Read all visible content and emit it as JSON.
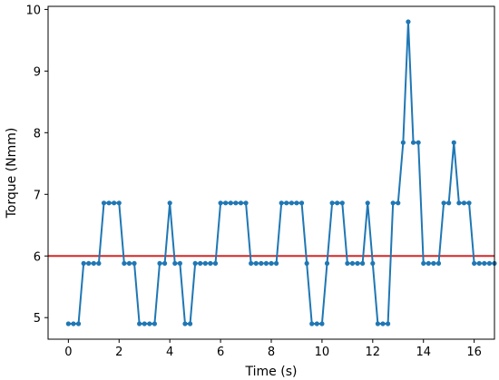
{
  "chart_data": {
    "type": "line",
    "xlabel": "Time (s)",
    "ylabel": "Torque (Nmm)",
    "xlim": [
      -0.8,
      16.8
    ],
    "ylim": [
      4.65,
      10.05
    ],
    "xticks": [
      "0",
      "2",
      "4",
      "6",
      "8",
      "10",
      "12",
      "14",
      "16"
    ],
    "yticks": [
      "5",
      "6",
      "7",
      "8",
      "9",
      "10"
    ],
    "grid": false,
    "series": [
      {
        "color": "#1f77b4",
        "marker": "circle",
        "points": [
          [
            0.0,
            4.9
          ],
          [
            0.2,
            4.9
          ],
          [
            0.4,
            4.9
          ],
          [
            0.6,
            5.88
          ],
          [
            0.8,
            5.88
          ],
          [
            1.0,
            5.88
          ],
          [
            1.2,
            5.88
          ],
          [
            1.4,
            6.86
          ],
          [
            1.6,
            6.86
          ],
          [
            1.8,
            6.86
          ],
          [
            2.0,
            6.86
          ],
          [
            2.2,
            5.88
          ],
          [
            2.4,
            5.88
          ],
          [
            2.6,
            5.88
          ],
          [
            2.8,
            4.9
          ],
          [
            3.0,
            4.9
          ],
          [
            3.2,
            4.9
          ],
          [
            3.4,
            4.9
          ],
          [
            3.6,
            5.88
          ],
          [
            3.8,
            5.88
          ],
          [
            4.0,
            6.86
          ],
          [
            4.2,
            5.88
          ],
          [
            4.4,
            5.88
          ],
          [
            4.6,
            4.9
          ],
          [
            4.8,
            4.9
          ],
          [
            5.0,
            5.88
          ],
          [
            5.2,
            5.88
          ],
          [
            5.4,
            5.88
          ],
          [
            5.6,
            5.88
          ],
          [
            5.8,
            5.88
          ],
          [
            6.0,
            6.86
          ],
          [
            6.2,
            6.86
          ],
          [
            6.4,
            6.86
          ],
          [
            6.6,
            6.86
          ],
          [
            6.8,
            6.86
          ],
          [
            7.0,
            6.86
          ],
          [
            7.2,
            5.88
          ],
          [
            7.4,
            5.88
          ],
          [
            7.6,
            5.88
          ],
          [
            7.8,
            5.88
          ],
          [
            8.0,
            5.88
          ],
          [
            8.2,
            5.88
          ],
          [
            8.4,
            6.86
          ],
          [
            8.6,
            6.86
          ],
          [
            8.8,
            6.86
          ],
          [
            9.0,
            6.86
          ],
          [
            9.2,
            6.86
          ],
          [
            9.4,
            5.88
          ],
          [
            9.6,
            4.9
          ],
          [
            9.8,
            4.9
          ],
          [
            10.0,
            4.9
          ],
          [
            10.2,
            5.88
          ],
          [
            10.4,
            6.86
          ],
          [
            10.6,
            6.86
          ],
          [
            10.8,
            6.86
          ],
          [
            11.0,
            5.88
          ],
          [
            11.2,
            5.88
          ],
          [
            11.4,
            5.88
          ],
          [
            11.6,
            5.88
          ],
          [
            11.8,
            6.86
          ],
          [
            12.0,
            5.88
          ],
          [
            12.2,
            4.9
          ],
          [
            12.4,
            4.9
          ],
          [
            12.6,
            4.9
          ],
          [
            12.8,
            6.86
          ],
          [
            13.0,
            6.86
          ],
          [
            13.2,
            7.84
          ],
          [
            13.4,
            9.8
          ],
          [
            13.6,
            7.84
          ],
          [
            13.8,
            7.84
          ],
          [
            14.0,
            5.88
          ],
          [
            14.2,
            5.88
          ],
          [
            14.4,
            5.88
          ],
          [
            14.6,
            5.88
          ],
          [
            14.8,
            6.86
          ],
          [
            15.0,
            6.86
          ],
          [
            15.2,
            7.84
          ],
          [
            15.4,
            6.86
          ],
          [
            15.6,
            6.86
          ],
          [
            15.8,
            6.86
          ],
          [
            16.0,
            5.88
          ],
          [
            16.2,
            5.88
          ],
          [
            16.4,
            5.88
          ],
          [
            16.6,
            5.88
          ],
          [
            16.8,
            5.88
          ]
        ]
      }
    ],
    "reference_lines": [
      {
        "orientation": "horizontal",
        "y": 6.0,
        "color": "#d62728"
      }
    ]
  }
}
